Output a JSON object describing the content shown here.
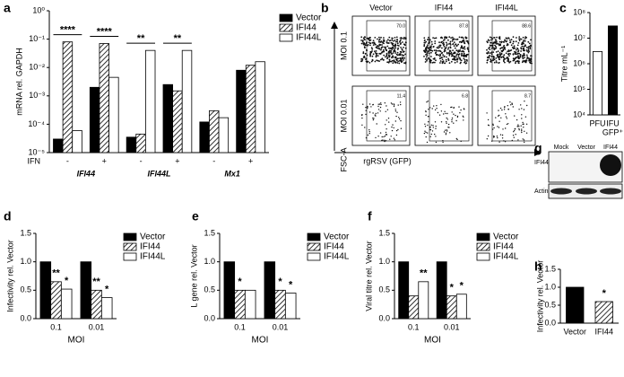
{
  "panel_labels": [
    "a",
    "b",
    "c",
    "d",
    "e",
    "f",
    "g",
    "h"
  ],
  "chart_data": [
    {
      "type": "bar",
      "ylabel": "mRNA rel. GAPDH",
      "log_scale": true,
      "ylim": [
        1e-05,
        1
      ],
      "yticks": [
        {
          "value": 1e-05,
          "label": "10⁻⁵"
        },
        {
          "value": 0.0001,
          "label": "10⁻⁴"
        },
        {
          "value": 0.001,
          "label": "10⁻³"
        },
        {
          "value": 0.01,
          "label": "10⁻²"
        },
        {
          "value": 0.1,
          "label": "10⁻¹"
        },
        {
          "value": 1,
          "label": "10⁰"
        }
      ],
      "categories": [
        "-",
        "+",
        "-",
        "+",
        "-",
        "+"
      ],
      "groups": [
        "IFI44",
        "IFI44L",
        "Mx1"
      ],
      "xlabel": "IFN",
      "category_annotations": [
        "****",
        "****",
        "**",
        "**",
        null,
        null
      ],
      "legend": "right",
      "series": [
        {
          "name": "Vector",
          "color": "#000000",
          "values": [
            3e-05,
            0.002,
            3.5e-05,
            0.0025,
            0.00012,
            0.008
          ]
        },
        {
          "name": "IFI44",
          "color": "#ffffff",
          "pattern": "hatch",
          "values": [
            0.08,
            0.07,
            4.5e-05,
            0.0015,
            0.0003,
            0.012
          ]
        },
        {
          "name": "IFI44L",
          "color": "#ffffff",
          "values": [
            6e-05,
            0.0045,
            0.04,
            0.04,
            0.00017,
            0.016
          ]
        }
      ]
    },
    {
      "type": "bar",
      "ylabel": "Titre mL⁻¹",
      "log_scale": true,
      "ylim": [
        10000,
        100000000
      ],
      "yticks": [
        {
          "value": 10000,
          "label": "10⁴"
        },
        {
          "value": 100000,
          "label": "10⁵"
        },
        {
          "value": 1000000,
          "label": "10⁶"
        },
        {
          "value": 10000000,
          "label": "10⁷"
        },
        {
          "value": 100000000,
          "label": "10⁸"
        }
      ],
      "categories": [
        "PFU",
        "IFU"
      ],
      "category_sublabels": [
        null,
        "GFP⁺"
      ],
      "values": [
        3000000,
        30000000
      ],
      "colors": [
        "#ffffff",
        "#000000"
      ]
    },
    {
      "type": "bar",
      "ylabel": "Infectivity rel. Vector",
      "xlabel": "MOI",
      "ylim": [
        0,
        1.5
      ],
      "yticks": [
        {
          "value": 0,
          "label": "0.0"
        },
        0.5,
        {
          "value": 1,
          "label": "1.0"
        },
        1.5
      ],
      "categories": [
        "0.1",
        "0.01"
      ],
      "legend": "right",
      "series": [
        {
          "name": "Vector",
          "color": "#000000",
          "values": [
            1,
            1
          ]
        },
        {
          "name": "IFI44",
          "color": "#ffffff",
          "pattern": "hatch",
          "values": [
            0.65,
            0.5
          ],
          "marks": [
            "**",
            "**"
          ]
        },
        {
          "name": "IFI44L",
          "color": "#ffffff",
          "values": [
            0.52,
            0.37
          ],
          "marks": [
            "*",
            "*"
          ]
        }
      ]
    },
    {
      "type": "bar",
      "ylabel": "L gene rel. Vector",
      "xlabel": "MOI",
      "ylim": [
        0,
        1.5
      ],
      "yticks": [
        {
          "value": 0,
          "label": "0.0"
        },
        0.5,
        {
          "value": 1,
          "label": "1.0"
        },
        1.5
      ],
      "categories": [
        "0.1",
        "0.01"
      ],
      "legend": "right",
      "series": [
        {
          "name": "Vector",
          "color": "#000000",
          "values": [
            1,
            1
          ]
        },
        {
          "name": "IFI44",
          "color": "#ffffff",
          "pattern": "hatch",
          "values": [
            0.5,
            0.5
          ],
          "marks": [
            "*",
            "*"
          ]
        },
        {
          "name": "IFI44L",
          "color": "#ffffff",
          "values": [
            0.5,
            0.45
          ],
          "marks": [
            null,
            "*"
          ]
        }
      ]
    },
    {
      "type": "bar",
      "ylabel": "Viral titre rel. Vector",
      "xlabel": "MOI",
      "ylim": [
        0,
        1.5
      ],
      "yticks": [
        {
          "value": 0,
          "label": "0.0"
        },
        0.5,
        {
          "value": 1,
          "label": "1.0"
        },
        1.5
      ],
      "categories": [
        "0.1",
        "0.01"
      ],
      "legend": "right",
      "series": [
        {
          "name": "Vector",
          "color": "#000000",
          "values": [
            1,
            1
          ]
        },
        {
          "name": "IFI44",
          "color": "#ffffff",
          "pattern": "hatch",
          "values": [
            0.4,
            0.4
          ],
          "marks": [
            null,
            "*"
          ]
        },
        {
          "name": "IFI44L",
          "color": "#ffffff",
          "values": [
            0.65,
            0.43
          ],
          "marks": [
            "**",
            "*"
          ]
        }
      ]
    },
    {
      "type": "bar",
      "ylabel": "Infectivity rel. Vector",
      "ylim": [
        0,
        1.5
      ],
      "yticks": [
        {
          "value": 0,
          "label": "0.0"
        },
        0.5,
        {
          "value": 1,
          "label": "1.0"
        },
        1.5
      ],
      "categories": [
        "Vector",
        "IFI44"
      ],
      "values": [
        1,
        0.6
      ],
      "colors": [
        "#000000",
        "#ffffff"
      ],
      "patterns": [
        null,
        "hatch"
      ],
      "marks": [
        null,
        "*"
      ]
    }
  ],
  "flow": {
    "columns": [
      "Vector",
      "IFI44",
      "IFI44L"
    ],
    "rows": [
      "MOI 0.1",
      "MOI 0.01"
    ],
    "gates": [
      [
        "70.0",
        "87.8",
        "88.6"
      ],
      [
        "11.4",
        "6.8",
        "8.7"
      ]
    ],
    "ylabel": "FSC-A",
    "xlabel": "rgRSV (GFP)"
  },
  "blot": {
    "lanes": [
      "Mock",
      "Vector",
      "IFI44"
    ],
    "rows": [
      "IFI44",
      "Actin"
    ]
  }
}
